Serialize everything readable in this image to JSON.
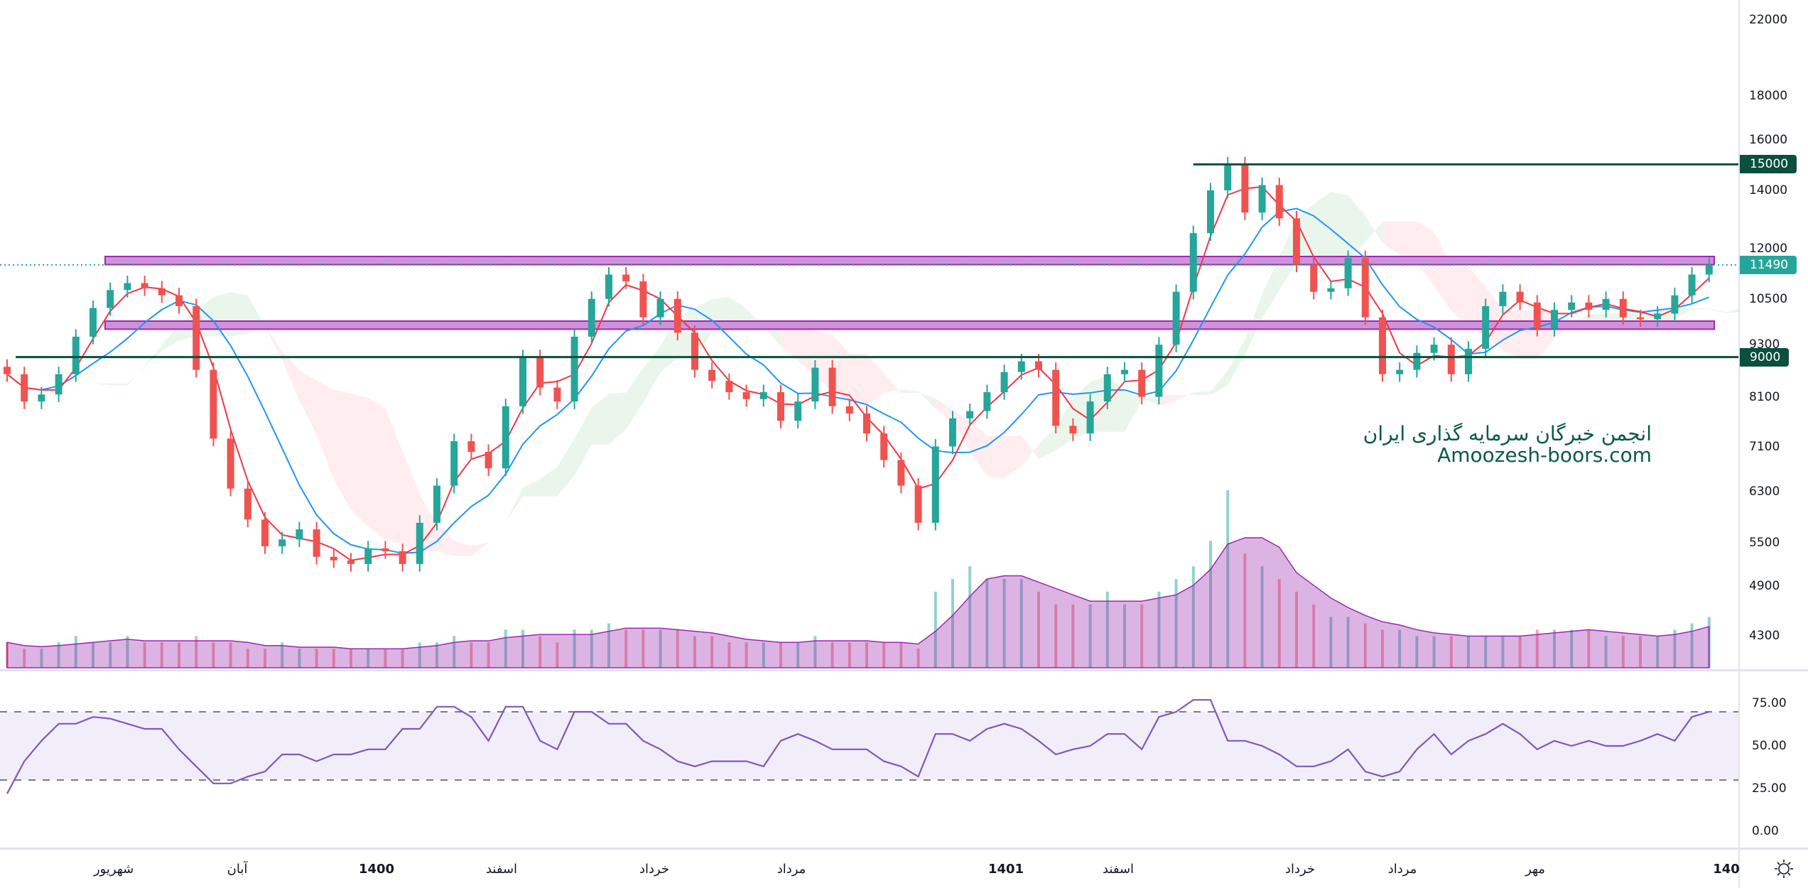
{
  "chart_data": {
    "type": "candlestick",
    "price_scale": "log",
    "price_ticks": [
      22000,
      18000,
      16000,
      14000,
      12000,
      10500,
      9300,
      8100,
      7100,
      6300,
      5500,
      4900,
      4300
    ],
    "price_range": [
      4300,
      22000
    ],
    "last_price": {
      "value": 11490,
      "label": "11490"
    },
    "horizontal_levels": [
      {
        "value": 15000,
        "label": "15000",
        "start_bar": 69
      },
      {
        "value": 9000,
        "label": "9000",
        "start_bar": 0.5
      }
    ],
    "zones": [
      {
        "low": 11500,
        "high": 11750,
        "start_bar": 5.7,
        "end_bar": 99.3
      },
      {
        "low": 9690,
        "high": 9900,
        "start_bar": 5.7,
        "end_bar": 99.3
      }
    ],
    "close": [
      8600,
      8000,
      8150,
      8600,
      9500,
      10250,
      10750,
      10950,
      10800,
      10600,
      10300,
      8700,
      7250,
      6350,
      5850,
      5450,
      5550,
      5700,
      5300,
      5250,
      5200,
      5420,
      5380,
      5200,
      5800,
      6400,
      7200,
      7000,
      6700,
      7900,
      9000,
      8300,
      8000,
      9500,
      10500,
      11200,
      11000,
      10000,
      10500,
      9600,
      8700,
      8450,
      8200,
      8050,
      8200,
      7600,
      8000,
      8750,
      7900,
      7750,
      7350,
      6850,
      6400,
      5800,
      7100,
      7650,
      7800,
      8200,
      8650,
      8900,
      8700,
      7500,
      7350,
      8000,
      8600,
      8700,
      8100,
      9300,
      10700,
      12500,
      14000,
      15000,
      13200,
      14200,
      13000,
      11500,
      10700,
      10800,
      11700,
      10000,
      8600,
      8700,
      9100,
      9300,
      8600,
      9200,
      10300,
      10700,
      10400,
      9700,
      10200,
      10400,
      10200,
      10500,
      10000,
      9950,
      10100,
      10600,
      11200,
      11490
    ],
    "volume": [
      2,
      1.5,
      1.5,
      2,
      2.5,
      2,
      2,
      2.5,
      2,
      2,
      2,
      2.5,
      2,
      2,
      1.5,
      1.5,
      2,
      1.5,
      1.5,
      1.5,
      1.5,
      1.5,
      1.5,
      1.5,
      2,
      2,
      2.5,
      2,
      2,
      3,
      3,
      2.5,
      2,
      3,
      3,
      3.5,
      3,
      3,
      3,
      3,
      2.5,
      2.5,
      2,
      2,
      2,
      2,
      2,
      2.5,
      2,
      2,
      2,
      2,
      2,
      1.5,
      6,
      7,
      8,
      7,
      7,
      7,
      6,
      5,
      5,
      5,
      6,
      5,
      5,
      6,
      7,
      8,
      10,
      14,
      9,
      8,
      7,
      6,
      5,
      4,
      4,
      3.5,
      3,
      3,
      2.5,
      2.5,
      2.5,
      2.5,
      2.5,
      2.5,
      2.5,
      3,
      3,
      3,
      3,
      2.5,
      2.5,
      2.5,
      2.5,
      3,
      3.5,
      4
    ],
    "volume_range": [
      0,
      14
    ],
    "rsi": [
      22,
      41,
      53,
      63,
      63,
      67,
      66,
      63,
      60,
      60,
      48,
      38,
      28,
      28,
      32,
      35,
      45,
      45,
      41,
      45,
      45,
      48,
      48,
      60,
      60,
      73,
      73,
      67,
      53,
      73,
      73,
      53,
      48,
      70,
      70,
      63,
      63,
      53,
      48,
      41,
      38,
      41,
      41,
      41,
      38,
      53,
      57,
      53,
      48,
      48,
      48,
      41,
      38,
      32,
      57,
      57,
      53,
      60,
      63,
      60,
      53,
      45,
      48,
      50,
      57,
      57,
      48,
      67,
      70,
      77,
      77,
      53,
      53,
      50,
      45,
      38,
      38,
      41,
      48,
      35,
      32,
      35,
      48,
      57,
      45,
      53,
      57,
      63,
      57,
      48,
      53,
      50,
      53,
      50,
      50,
      53,
      57,
      53,
      67,
      70
    ],
    "rsi_ticks": [
      75,
      50,
      25,
      0
    ],
    "rsi_tick_labels": [
      "75.00",
      "50.00",
      "25.00",
      "0.00"
    ],
    "rsi_band": [
      30,
      70
    ],
    "x_tick_labels": [
      {
        "label": "شهریور",
        "year": false
      },
      {
        "label": "آبان",
        "year": false
      },
      {
        "label": "1400",
        "year": true
      },
      {
        "label": "اسفند",
        "year": false
      },
      {
        "label": "خرداد",
        "year": false
      },
      {
        "label": "مرداد",
        "year": false
      },
      {
        "label": "1401",
        "year": true
      },
      {
        "label": "اسفند",
        "year": false
      },
      {
        "label": "خرداد",
        "year": false
      },
      {
        "label": "مرداد",
        "year": false
      },
      {
        "label": "مهر",
        "year": false
      },
      {
        "label": "140",
        "year": true
      }
    ],
    "colors": {
      "up": "#26a69a",
      "down": "#ef5350",
      "ma_fast": "#f23645",
      "ma_slow": "#2196f3",
      "level": "#0b4f3f",
      "zone_fill": "#ce93d8",
      "zone_border": "#9c27b0",
      "volume_ma": "#9c27b0",
      "rsi": "#7e57c2",
      "cloud_up": "#e8f5e9",
      "cloud_down": "#ffebee"
    },
    "grid": false,
    "indicators": [
      "moving averages",
      "ichimoku cloud",
      "volume",
      "rsi"
    ]
  },
  "watermark": {
    "line1": "انجمن خبرگان سرمایه گذاری ایران",
    "line2": "Amoozesh-boors.com"
  },
  "toolbar": {
    "settings_icon": "sun-icon"
  }
}
